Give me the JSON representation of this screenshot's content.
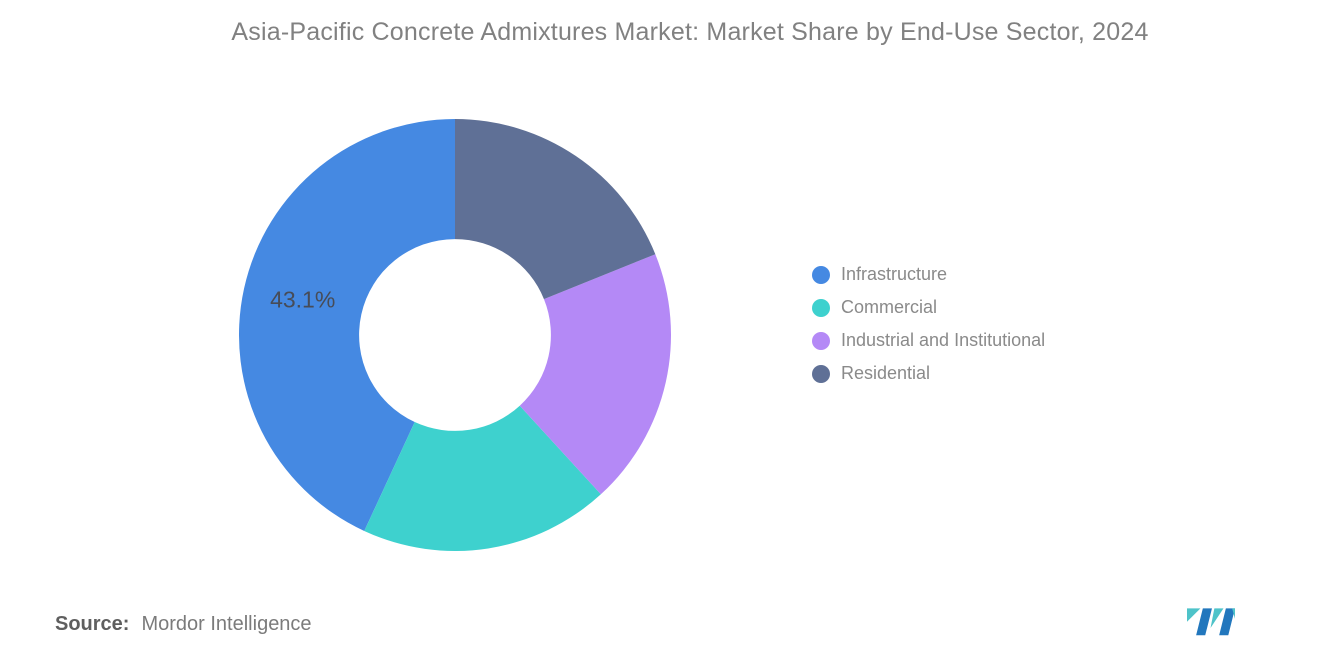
{
  "chart": {
    "title": "Asia-Pacific Concrete Admixtures Market: Market Share by End-Use Sector, 2024",
    "source_label": "Source:",
    "source_value": "Mordor Intelligence"
  },
  "chart_data": {
    "type": "pie",
    "subtype": "donut",
    "title": "Asia-Pacific Concrete Admixtures Market: Market Share by End-Use Sector, 2024",
    "direction": "counterclockwise",
    "start_angle_deg": 0,
    "inner_radius_ratio": 0.444,
    "legend_position": "right",
    "slices": [
      {
        "name": "Infrastructure",
        "value": 43.1,
        "color": "#4589E2",
        "label": "43.1%"
      },
      {
        "name": "Commercial",
        "value": 18.7,
        "color": "#3ED1CE",
        "label": ""
      },
      {
        "name": "Industrial and Institutional",
        "value": 19.3,
        "color": "#B489F6",
        "label": ""
      },
      {
        "name": "Residential",
        "value": 18.9,
        "color": "#5F7096",
        "label": ""
      }
    ]
  },
  "logo": {
    "teal": "#4EC3C9",
    "blue": "#2277BD"
  },
  "styles": {
    "title_color": "#818181",
    "legend_text_color": "#8A8A8A",
    "slice_label_color": "#474C57",
    "source_label_color": "#5F5F5F",
    "source_value_color": "#7B7B7B"
  }
}
